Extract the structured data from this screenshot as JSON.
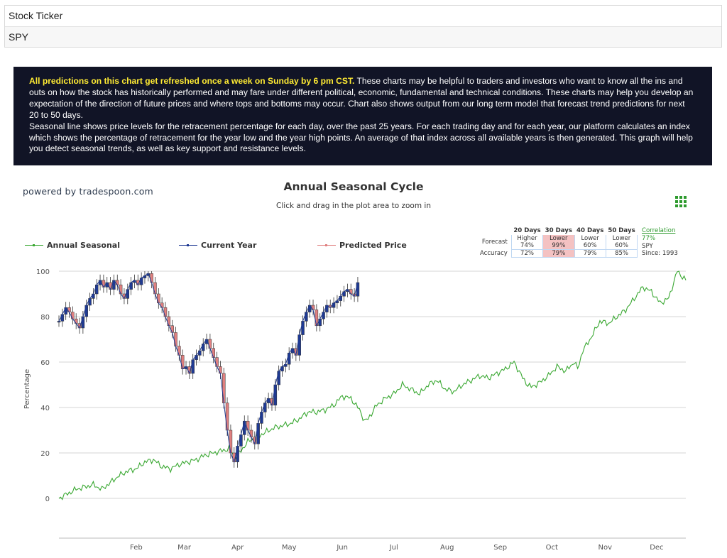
{
  "ticker": {
    "label": "Stock Ticker",
    "value": "SPY"
  },
  "info": {
    "highlight": "All predictions on this chart get refreshed once a week on Sunday by 6 pm CST.",
    "body1": " These charts may be helpful to traders and investors who want to know all the ins and outs on how the stock has historically performed and may fare under different political, economic, fundamental and technical conditions. These charts may help you develop an expectation of the direction of future prices and where tops and bottoms may occur. Chart also shows output from our long term model that forecast trend predictions for next 20 to 50 days.",
    "body2": "Seasonal line shows price levels for the retracement percentage for each day, over the past 25 years. For each trading day and for each year, our platform calculates an index which shows the percentage of retracement for the year low and the year high points. An average of that index across all available years is then generated. This graph will help you detect seasonal trends, as well as key support and resistance levels."
  },
  "powered_by": "powered by tradespoon.com",
  "menu_icon": "hamburger-grid-icon",
  "forecast_table": {
    "headers": [
      "20 Days",
      "30 Days",
      "40 Days",
      "50 Days"
    ],
    "forecast_label": "Forecast",
    "forecast_top": [
      "Higher",
      "Lower",
      "Lower",
      "Lower"
    ],
    "forecast_pct": [
      "74%",
      "99%",
      "60%",
      "60%"
    ],
    "accuracy_label": "Accuracy",
    "accuracy": [
      "72%",
      "79%",
      "79%",
      "85%"
    ],
    "highlight_color": "#f4c2c2"
  },
  "correlation": {
    "label": "Correlation",
    "value": "77%",
    "symbol": "SPY",
    "since": "Since: 1993"
  },
  "colors": {
    "seasonal": "#3aa832",
    "current": "#1f3a93",
    "up_candle": "#1f3a93",
    "down_candle": "#e08080",
    "grid": "#d6d6d6",
    "axis_text": "#555555"
  },
  "chart_data": {
    "type": "line",
    "title": "Annual Seasonal Cycle",
    "subtitle": "Click and drag in the plot area to zoom in",
    "ylabel": "Percentage",
    "xlabel": "",
    "ylim": [
      0,
      100
    ],
    "yticks": [
      0,
      20,
      40,
      60,
      80,
      100
    ],
    "xlim": [
      0,
      365
    ],
    "month_ticks": [
      {
        "label": "Feb",
        "day": 31
      },
      {
        "label": "Mar",
        "day": 59
      },
      {
        "label": "Apr",
        "day": 90
      },
      {
        "label": "May",
        "day": 120
      },
      {
        "label": "Jun",
        "day": 151
      },
      {
        "label": "Jul",
        "day": 181
      },
      {
        "label": "Aug",
        "day": 212
      },
      {
        "label": "Sep",
        "day": 243
      },
      {
        "label": "Oct",
        "day": 273
      },
      {
        "label": "Nov",
        "day": 304
      },
      {
        "label": "Dec",
        "day": 334
      }
    ],
    "legend": {
      "position": "top-left"
    },
    "series": [
      {
        "name": "Annual Seasonal",
        "x": [
          0,
          5,
          10,
          15,
          20,
          25,
          30,
          35,
          40,
          45,
          50,
          55,
          60,
          65,
          70,
          75,
          80,
          85,
          90,
          95,
          100,
          102,
          105,
          110,
          115,
          120,
          125,
          130,
          135,
          140,
          145,
          150,
          155,
          160,
          165,
          170,
          175,
          178,
          180,
          185,
          190,
          195,
          200,
          205,
          210,
          215,
          220,
          225,
          230,
          235,
          240,
          245,
          250,
          255,
          260,
          265,
          270,
          273,
          275,
          280,
          285,
          290,
          295,
          300,
          302,
          305,
          310,
          315,
          320,
          325,
          330,
          335,
          340,
          345,
          350,
          355,
          360,
          365
        ],
        "values": [
          0,
          2,
          4,
          5,
          6,
          4,
          7,
          10,
          12,
          13,
          16,
          17,
          14,
          13,
          15,
          16,
          17,
          19,
          20,
          21,
          22,
          18,
          20,
          25,
          27,
          29,
          31,
          32,
          33,
          35,
          38,
          38,
          39,
          41,
          45,
          44,
          39,
          34,
          35,
          41,
          44,
          46,
          50,
          48,
          46,
          50,
          52,
          48,
          47,
          50,
          52,
          54,
          53,
          55,
          57,
          60,
          53,
          50,
          49,
          51,
          54,
          58,
          56,
          60,
          57,
          65,
          71,
          78,
          77,
          80,
          83,
          88,
          93,
          91,
          86,
          88,
          100,
          96
        ]
      },
      {
        "name": "Current Year",
        "x": [
          0,
          2,
          4,
          6,
          8,
          10,
          12,
          14,
          16,
          18,
          20,
          22,
          24,
          26,
          28,
          30,
          32,
          34,
          36,
          38,
          40,
          42,
          44,
          46,
          48,
          50,
          52,
          54,
          56,
          58,
          60,
          62,
          64,
          66,
          68,
          70,
          72,
          74,
          76,
          78,
          80,
          82,
          84,
          86,
          88,
          90,
          92,
          94,
          96,
          98,
          100,
          102,
          104,
          106,
          108,
          110,
          112,
          114,
          116,
          118,
          120,
          122,
          124,
          126,
          128,
          130,
          132,
          134,
          136,
          138,
          140,
          142,
          144,
          146,
          148,
          150,
          152,
          154,
          156,
          158,
          160,
          162,
          164,
          166,
          168,
          170,
          172,
          174
        ],
        "values": [
          78,
          81,
          84,
          82,
          79,
          77,
          75,
          80,
          85,
          88,
          90,
          94,
          96,
          93,
          95,
          92,
          96,
          94,
          90,
          88,
          92,
          95,
          96,
          94,
          97,
          98,
          99,
          95,
          90,
          86,
          84,
          80,
          76,
          73,
          67,
          63,
          57,
          58,
          55,
          61,
          63,
          65,
          68,
          70,
          66,
          62,
          58,
          55,
          42,
          30,
          20,
          16,
          23,
          28,
          34,
          30,
          27,
          24,
          33,
          38,
          42,
          44,
          41,
          50,
          56,
          58,
          59,
          64,
          66,
          63,
          72,
          78,
          82,
          85,
          83,
          76,
          79,
          82,
          85,
          84,
          86,
          87,
          89,
          91,
          92,
          90,
          89,
          95
        ]
      },
      {
        "name": "Predicted Price",
        "x": [],
        "values": []
      }
    ]
  }
}
